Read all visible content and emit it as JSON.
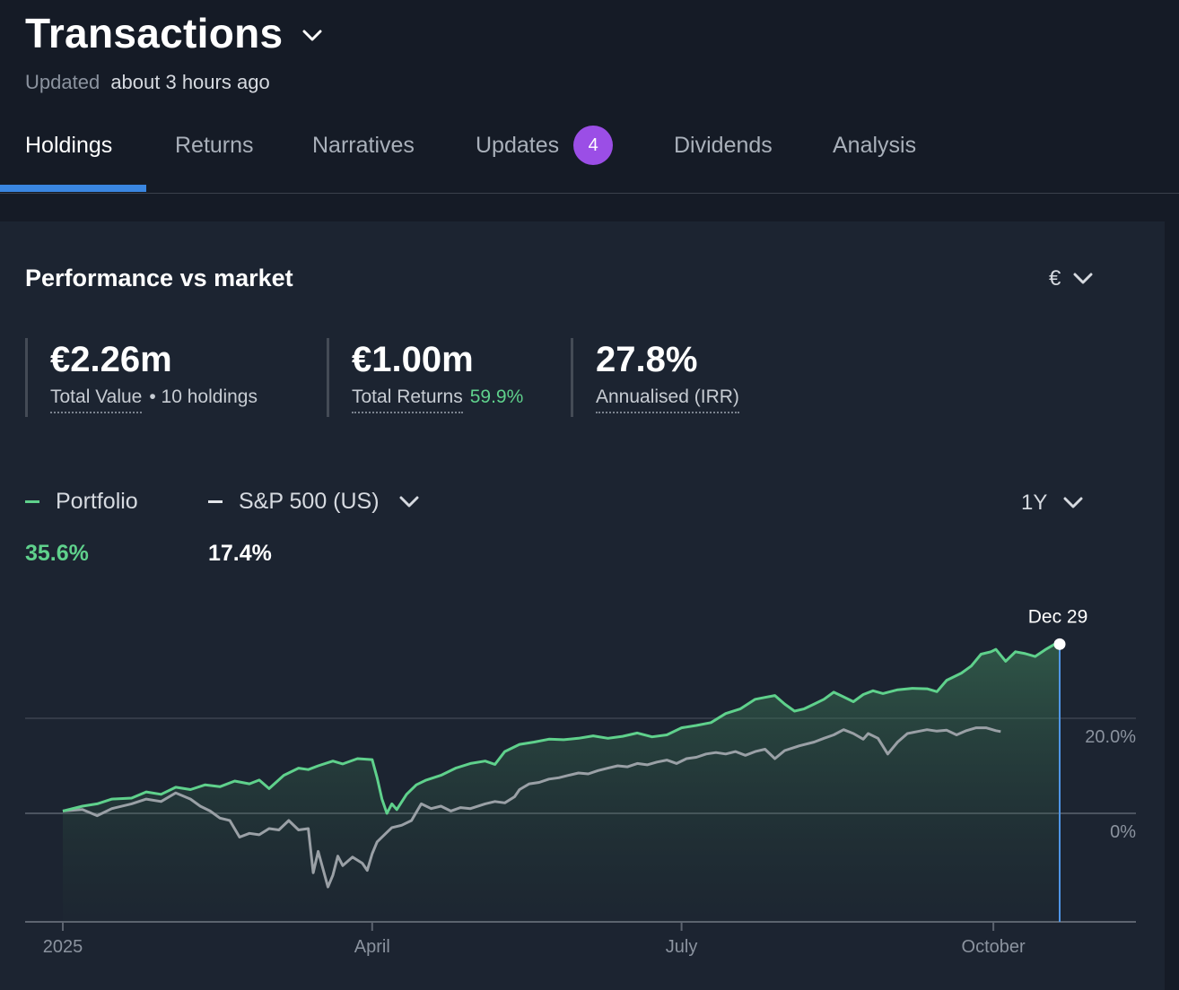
{
  "header": {
    "title": "Transactions",
    "updated_label": "Updated",
    "updated_value": "about 3 hours ago"
  },
  "tabs": [
    {
      "label": "Holdings",
      "active": true
    },
    {
      "label": "Returns"
    },
    {
      "label": "Narratives"
    },
    {
      "label": "Updates",
      "badge": "4"
    },
    {
      "label": "Dividends"
    },
    {
      "label": "Analysis"
    }
  ],
  "performance": {
    "title": "Performance vs market",
    "currency": "€",
    "stats": [
      {
        "value": "€2.26m",
        "label": "Total Value",
        "extra": "• 10 holdings"
      },
      {
        "value": "€1.00m",
        "label": "Total Returns",
        "extra": "59.9%"
      },
      {
        "value": "27.8%",
        "label": "Annualised (IRR)"
      }
    ],
    "legend": {
      "portfolio_label": "Portfolio",
      "portfolio_value": "35.6%",
      "benchmark_label": "S&P 500 (US)",
      "benchmark_value": "17.4%"
    },
    "period": "1Y",
    "tooltip_date": "Dec 29"
  },
  "colors": {
    "portfolio": "#5fd18c",
    "benchmark": "#9aa0a6",
    "accent": "#3a86e0",
    "badge": "#9b4ee6",
    "cursor_line": "#4f95e6"
  },
  "chart_data": {
    "type": "line",
    "x_ticks": [
      "2025",
      "April",
      "July",
      "October"
    ],
    "y_ticks": [
      "20.0%",
      "0%"
    ],
    "ylim": [
      -22,
      37
    ],
    "series": [
      {
        "name": "Portfolio",
        "points": [
          [
            0,
            0.5
          ],
          [
            4,
            1.5
          ],
          [
            7,
            2
          ],
          [
            10,
            3
          ],
          [
            14,
            3.2
          ],
          [
            17,
            4.5
          ],
          [
            20,
            4
          ],
          [
            23,
            5.5
          ],
          [
            26,
            5
          ],
          [
            29,
            6
          ],
          [
            32,
            5.6
          ],
          [
            35,
            6.8
          ],
          [
            38,
            6.2
          ],
          [
            40,
            7
          ],
          [
            42,
            5.2
          ],
          [
            45,
            8
          ],
          [
            48,
            9.5
          ],
          [
            50,
            9.2
          ],
          [
            52,
            10
          ],
          [
            55,
            11
          ],
          [
            57,
            10.4
          ],
          [
            60,
            11.5
          ],
          [
            63,
            11.3
          ],
          [
            64,
            7.5
          ],
          [
            65,
            3
          ],
          [
            66,
            0
          ],
          [
            67,
            2
          ],
          [
            68,
            0.8
          ],
          [
            70,
            4
          ],
          [
            72,
            6
          ],
          [
            74,
            7
          ],
          [
            77,
            8
          ],
          [
            80,
            9.5
          ],
          [
            83,
            10.5
          ],
          [
            86,
            11
          ],
          [
            88,
            10.3
          ],
          [
            90,
            13
          ],
          [
            93,
            14.5
          ],
          [
            96,
            15
          ],
          [
            99,
            15.6
          ],
          [
            102,
            15.5
          ],
          [
            105,
            15.8
          ],
          [
            108,
            16.3
          ],
          [
            111,
            15.8
          ],
          [
            114,
            16.2
          ],
          [
            117,
            16.9
          ],
          [
            120,
            16.1
          ],
          [
            123,
            16.5
          ],
          [
            126,
            18
          ],
          [
            129,
            18.5
          ],
          [
            132,
            19.1
          ],
          [
            135,
            21
          ],
          [
            138,
            22
          ],
          [
            141,
            24
          ],
          [
            143,
            24.4
          ],
          [
            145,
            24.8
          ],
          [
            147,
            23
          ],
          [
            149,
            21.5
          ],
          [
            151,
            22
          ],
          [
            153,
            23
          ],
          [
            155,
            24
          ],
          [
            157,
            25.5
          ],
          [
            159,
            24.5
          ],
          [
            161,
            23.5
          ],
          [
            163,
            25
          ],
          [
            165,
            25.8
          ],
          [
            167,
            25.2
          ],
          [
            170,
            26
          ],
          [
            173,
            26.3
          ],
          [
            176,
            26.2
          ],
          [
            178,
            25.6
          ],
          [
            180,
            28
          ],
          [
            183,
            29.5
          ],
          [
            185,
            31
          ],
          [
            187,
            33.5
          ],
          [
            189,
            34
          ],
          [
            190,
            34.5
          ],
          [
            192,
            32
          ],
          [
            194,
            34
          ],
          [
            196,
            33.6
          ],
          [
            198,
            33
          ],
          [
            200,
            34.4
          ],
          [
            202,
            35.6
          ],
          [
            203,
            35.6
          ]
        ]
      },
      {
        "name": "S&P 500 (US)",
        "points": [
          [
            0,
            0.5
          ],
          [
            4,
            0.8
          ],
          [
            7,
            -0.5
          ],
          [
            10,
            1
          ],
          [
            14,
            2
          ],
          [
            17,
            3
          ],
          [
            20,
            2.5
          ],
          [
            23,
            4.3
          ],
          [
            26,
            3
          ],
          [
            28,
            1.5
          ],
          [
            30,
            0.5
          ],
          [
            32,
            -1
          ],
          [
            34,
            -1.5
          ],
          [
            36,
            -5
          ],
          [
            38,
            -4.2
          ],
          [
            40,
            -4.5
          ],
          [
            42,
            -3.2
          ],
          [
            44,
            -3.5
          ],
          [
            46,
            -1.5
          ],
          [
            48,
            -3.5
          ],
          [
            50,
            -3.2
          ],
          [
            51,
            -12.5
          ],
          [
            52,
            -8
          ],
          [
            54,
            -15.5
          ],
          [
            55,
            -13
          ],
          [
            56,
            -9
          ],
          [
            57,
            -11
          ],
          [
            59,
            -9.2
          ],
          [
            61,
            -10.5
          ],
          [
            62,
            -12
          ],
          [
            63,
            -8.5
          ],
          [
            64,
            -6
          ],
          [
            66,
            -4
          ],
          [
            67,
            -3
          ],
          [
            69,
            -2.5
          ],
          [
            71,
            -1.5
          ],
          [
            73,
            2
          ],
          [
            75,
            1
          ],
          [
            77,
            1.5
          ],
          [
            79,
            0.5
          ],
          [
            81,
            1.2
          ],
          [
            83,
            1
          ],
          [
            86,
            2
          ],
          [
            88,
            2.5
          ],
          [
            90,
            2.2
          ],
          [
            92,
            3.5
          ],
          [
            93,
            5
          ],
          [
            95,
            6.2
          ],
          [
            97,
            6.5
          ],
          [
            99,
            7.2
          ],
          [
            101,
            7.5
          ],
          [
            103,
            8
          ],
          [
            105,
            8.5
          ],
          [
            107,
            8.3
          ],
          [
            109,
            9
          ],
          [
            111,
            9.5
          ],
          [
            113,
            10
          ],
          [
            115,
            9.8
          ],
          [
            117,
            10.5
          ],
          [
            119,
            10.2
          ],
          [
            121,
            10.8
          ],
          [
            123,
            11.2
          ],
          [
            125,
            10.5
          ],
          [
            127,
            11.5
          ],
          [
            129,
            11.8
          ],
          [
            131,
            12.5
          ],
          [
            133,
            12.8
          ],
          [
            135,
            12.5
          ],
          [
            137,
            13
          ],
          [
            139,
            12.2
          ],
          [
            141,
            13
          ],
          [
            143,
            13.5
          ],
          [
            145,
            11.5
          ],
          [
            147,
            13.2
          ],
          [
            150,
            14.2
          ],
          [
            153,
            15
          ],
          [
            155,
            15.8
          ],
          [
            157,
            16.5
          ],
          [
            159,
            17.6
          ],
          [
            161,
            16.8
          ],
          [
            163,
            15.6
          ],
          [
            164,
            16.8
          ],
          [
            166,
            15.8
          ],
          [
            168,
            12.5
          ],
          [
            170,
            15
          ],
          [
            172,
            16.8
          ],
          [
            174,
            17.2
          ],
          [
            176,
            17.6
          ],
          [
            178,
            17.3
          ],
          [
            180,
            17.5
          ],
          [
            182,
            16.5
          ],
          [
            184,
            17.4
          ],
          [
            186,
            18
          ],
          [
            188,
            18
          ],
          [
            190,
            17.4
          ],
          [
            191,
            17.2
          ]
        ]
      }
    ],
    "x_scale": "days of year (0 = 2025 start)",
    "grid": true,
    "legend": "top-left"
  }
}
